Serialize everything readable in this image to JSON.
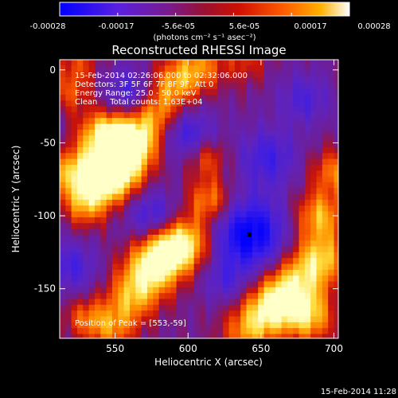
{
  "chart_data": {
    "type": "heatmap",
    "title": "Reconstructed RHESSI Image",
    "xlabel": "Heliocentric X (arcsec)",
    "ylabel": "Heliocentric Y (arcsec)",
    "xlim": [
      512,
      703
    ],
    "ylim": [
      -184,
      7
    ],
    "x_ticks": [
      550,
      600,
      650,
      700
    ],
    "y_ticks": [
      0,
      -50,
      -100,
      -150
    ],
    "colorbar": {
      "ticks": [
        "-0.00028",
        "-0.00017",
        "-5.6e-05",
        "5.6e-05",
        "0.00017",
        "0.00028"
      ],
      "unit": "(photons cm⁻² s⁻¹ asec⁻²)",
      "range": [
        -0.00028,
        0.00028
      ],
      "colors": [
        "#0000ff",
        "#6a1fd0",
        "#8a1a5a",
        "#c01010",
        "#ff4000",
        "#ff9a00",
        "#ffff80",
        "#ffffff"
      ]
    },
    "annotations": [
      "15-Feb-2014 02:26:06.000 to 02:32:06.000",
      "Detectors: 3F 5F 6F 7F 8F 9F, Att 0",
      "Energy Range: 25.0 - 50.0 keV",
      "Clean     Total counts: 1.63E+04"
    ],
    "peak_label": "Position of Peak = [553,-59]",
    "peak": [
      553,
      -59
    ],
    "marked_point": [
      642,
      -113
    ],
    "grid": false
  },
  "footer_timestamp": "15-Feb-2014 11:28"
}
